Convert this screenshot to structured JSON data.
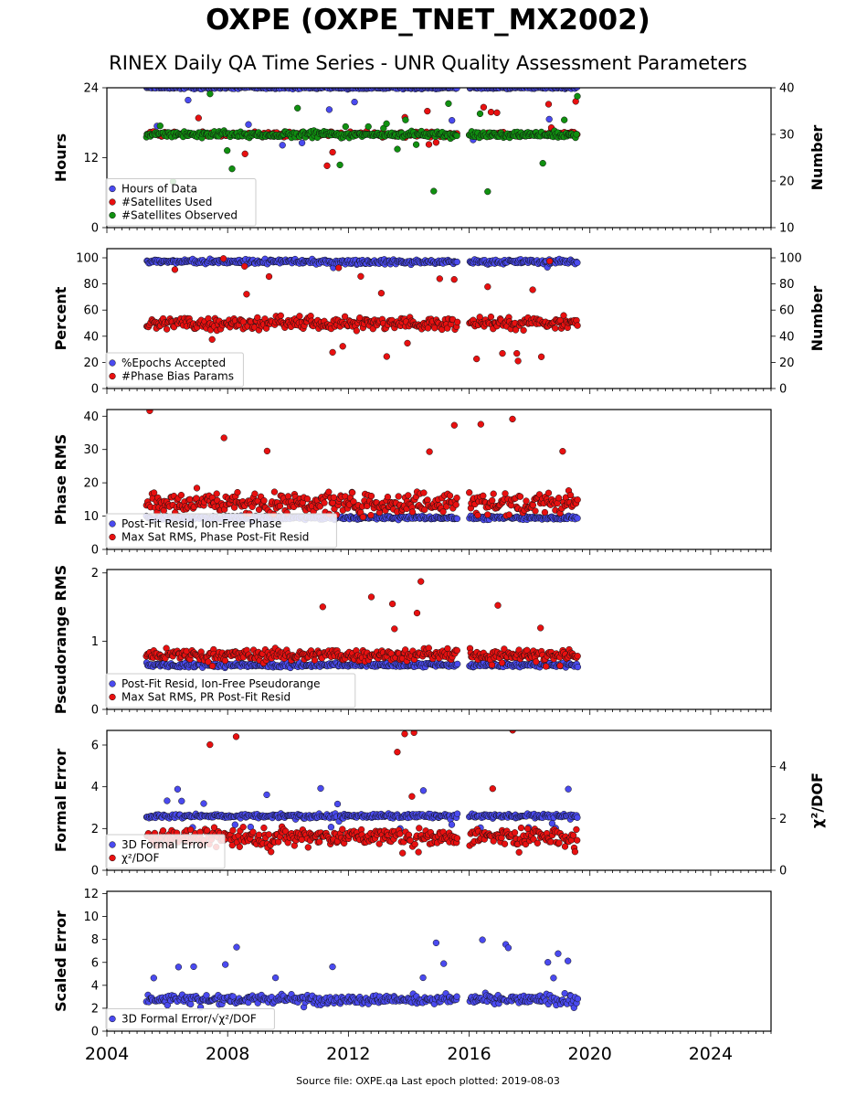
{
  "title": "OXPE (OXPE_TNET_MX2002)",
  "subtitle": "RINEX Daily QA Time Series - UNR Quality Assessment Parameters",
  "footer": "Source file: OXPE.qa Last epoch plotted: 2019-08-03",
  "colors": {
    "blue": "#4a4aef",
    "red": "#e81010",
    "green": "#109010"
  },
  "chart_data": [
    {
      "type": "scatter",
      "xlabel": "",
      "ylabel": "Hours",
      "y2label": "Number",
      "xlim": [
        2004,
        2026
      ],
      "ylim": [
        0,
        24
      ],
      "y2lim": [
        10,
        40
      ],
      "yticks": [
        0,
        12,
        24
      ],
      "y2ticks": [
        10,
        20,
        30,
        40
      ],
      "legend": "lower-left",
      "series": [
        {
          "name": "Hours of Data",
          "color": "blue",
          "axis": "left",
          "base": 24,
          "spread": 0.3,
          "outlier_low": 14,
          "outliers": 0.03
        },
        {
          "name": "#Satellites Used",
          "color": "red",
          "axis": "right",
          "base": 30,
          "spread": 0.8,
          "outlier_low": 20,
          "outliers": 0.02
        },
        {
          "name": "#Satellites Observed",
          "color": "green",
          "axis": "right",
          "base": 30,
          "spread": 1.0,
          "outlier_low": 16,
          "outliers": 0.03
        }
      ]
    },
    {
      "type": "scatter",
      "xlabel": "",
      "ylabel": "Percent",
      "y2label": "Number",
      "xlim": [
        2004,
        2026
      ],
      "ylim": [
        0,
        107
      ],
      "y2lim": [
        0,
        107
      ],
      "yticks": [
        0,
        20,
        40,
        60,
        80,
        100
      ],
      "y2ticks": [
        0,
        20,
        40,
        60,
        80,
        100
      ],
      "legend": "lower-left",
      "series": [
        {
          "name": "%Epochs Accepted",
          "color": "blue",
          "axis": "left",
          "base": 97,
          "spread": 2.5,
          "outlier_low": 90,
          "outliers": 0.02
        },
        {
          "name": "#Phase Bias Params",
          "color": "red",
          "axis": "right",
          "base": 50,
          "spread": 7,
          "outlier_low": 20,
          "outliers": 0.04
        }
      ]
    },
    {
      "type": "scatter",
      "xlabel": "",
      "ylabel": "Phase RMS",
      "xlim": [
        2004,
        2026
      ],
      "ylim": [
        0,
        42
      ],
      "yticks": [
        0,
        10,
        20,
        30,
        40
      ],
      "legend": "lower-left",
      "series": [
        {
          "name": "Post-Fit Resid, Ion-Free Phase",
          "color": "blue",
          "axis": "left",
          "base": 9.5,
          "spread": 0.8,
          "outlier_low": 8,
          "outliers": 0.0
        },
        {
          "name": "Max Sat RMS, Phase Post-Fit Resid",
          "color": "red",
          "axis": "left",
          "base": 14,
          "spread": 5,
          "outlier_low": 10,
          "outliers": 0.05
        }
      ]
    },
    {
      "type": "scatter",
      "xlabel": "",
      "ylabel": "Pseudorange RMS",
      "xlim": [
        2004,
        2026
      ],
      "ylim": [
        0,
        2.05
      ],
      "yticks": [
        0,
        1,
        2
      ],
      "legend": "lower-left",
      "series": [
        {
          "name": "Post-Fit Resid, Ion-Free Pseudorange",
          "color": "blue",
          "axis": "left",
          "base": 0.65,
          "spread": 0.05,
          "outlier_low": 0.5,
          "outliers": 0.0
        },
        {
          "name": "Max Sat RMS, PR Post-Fit Resid",
          "color": "red",
          "axis": "left",
          "base": 0.8,
          "spread": 0.12,
          "outlier_low": 0.6,
          "outliers": 0.03
        }
      ]
    },
    {
      "type": "scatter",
      "xlabel": "",
      "ylabel": "Formal Error",
      "y2label": "χ²/DOF",
      "xlim": [
        2004,
        2026
      ],
      "ylim": [
        0,
        6.7
      ],
      "y2lim": [
        0,
        5.4
      ],
      "yticks": [
        0,
        2,
        4,
        6
      ],
      "y2ticks": [
        0,
        2,
        4
      ],
      "legend": "lower-left",
      "series": [
        {
          "name": "3D Formal Error",
          "color": "blue",
          "axis": "left",
          "base": 2.6,
          "spread": 0.15,
          "outlier_low": 2.0,
          "outliers": 0.03
        },
        {
          "name": "χ²/DOF",
          "color": "red",
          "axis": "right",
          "base": 1.3,
          "spread": 0.5,
          "outlier_low": 0.6,
          "outliers": 0.04
        }
      ]
    },
    {
      "type": "scatter",
      "xlabel": "",
      "ylabel": "Scaled Error",
      "xlim": [
        2004,
        2026
      ],
      "ylim": [
        0,
        12.2
      ],
      "yticks": [
        0,
        2,
        4,
        6,
        8,
        10,
        12
      ],
      "xticks": [
        2004,
        2008,
        2012,
        2016,
        2020,
        2024
      ],
      "legend": "lower-left",
      "series": [
        {
          "name": "3D Formal Error/√χ²/DOF",
          "color": "blue",
          "axis": "left",
          "base": 2.8,
          "spread": 0.6,
          "outlier_low": 2.0,
          "outliers": 0.05
        }
      ]
    }
  ],
  "data_spans": [
    [
      2005.3,
      2015.6
    ],
    [
      2016.0,
      2019.6
    ]
  ],
  "last_epoch": "2019-08-03"
}
